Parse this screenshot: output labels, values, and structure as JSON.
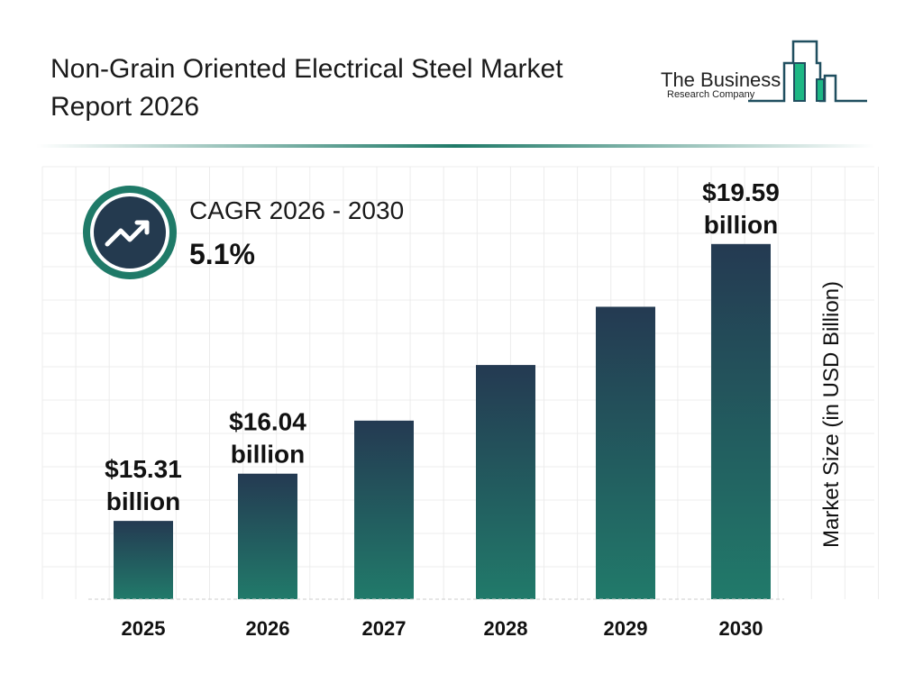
{
  "header": {
    "title_line1": "Non-Grain Oriented Electrical Steel Market",
    "title_line2": "Report 2026"
  },
  "logo": {
    "line1": "The Business",
    "line2": "Research Company",
    "colors": {
      "dark": "#1f4e5f",
      "accent": "#1db784"
    }
  },
  "cagr": {
    "label": "CAGR 2026 - 2030",
    "value": "5.1%",
    "icon": "trending-up-icon"
  },
  "colors": {
    "bar_top": "#243a52",
    "bar_bottom": "#217a6a",
    "divider": "#1f7a68",
    "ring": "#1f7a68",
    "icon_bg": "#243a4f"
  },
  "chart_data": {
    "type": "bar",
    "categories": [
      "2025",
      "2026",
      "2027",
      "2028",
      "2029",
      "2030"
    ],
    "values": [
      15.31,
      16.04,
      16.86,
      17.72,
      18.62,
      19.59
    ],
    "data_labels": [
      [
        "$15.31",
        "billion"
      ],
      [
        "$16.04",
        "billion"
      ],
      null,
      null,
      null,
      [
        "$19.59",
        "billion"
      ]
    ],
    "xlabel": "",
    "ylabel": "Market Size (in USD Billion)",
    "grid": true
  }
}
